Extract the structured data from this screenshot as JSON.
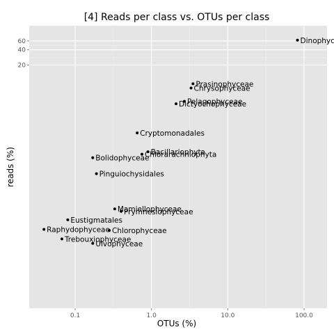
{
  "chart_data": {
    "type": "scatter",
    "title": "[4] Reads per class vs. OTUs per class",
    "xlabel": "OTUs (%)",
    "ylabel": "reads (%)",
    "x_scale": "log",
    "y_scale": "log",
    "xlim": [
      0.025,
      200
    ],
    "ylim": [
      0.0003,
      120
    ],
    "x_ticks": [
      {
        "value": 0.1,
        "label": "0.1"
      },
      {
        "value": 1,
        "label": "1.0"
      },
      {
        "value": 10,
        "label": "10.0"
      },
      {
        "value": 100,
        "label": "100.0"
      }
    ],
    "y_ticks": [
      {
        "value": 20,
        "label": "20"
      },
      {
        "value": 40,
        "label": "40"
      },
      {
        "value": 60,
        "label": "60"
      }
    ],
    "grid": true,
    "legend": "none",
    "points": [
      {
        "label": "Dinophyceae",
        "x": 82,
        "y": 62
      },
      {
        "label": "Prasinophyceae",
        "x": 3.5,
        "y": 8.5
      },
      {
        "label": "Chrysophyceae",
        "x": 3.3,
        "y": 7.0
      },
      {
        "label": "Pelagophyceae",
        "x": 2.7,
        "y": 3.8
      },
      {
        "label": "Dictyochophyceae",
        "x": 2.1,
        "y": 3.4
      },
      {
        "label": "Cryptomonadales",
        "x": 0.65,
        "y": 0.9
      },
      {
        "label": "Bacillariophyta",
        "x": 0.9,
        "y": 0.38
      },
      {
        "label": "Chlorarachniophyta",
        "x": 0.75,
        "y": 0.34
      },
      {
        "label": "Bolidophyceae",
        "x": 0.17,
        "y": 0.29
      },
      {
        "label": "Pinguiochysidales",
        "x": 0.19,
        "y": 0.14
      },
      {
        "label": "Mamiellophyceae",
        "x": 0.33,
        "y": 0.028
      },
      {
        "label": "Prymnesiophyceae",
        "x": 0.4,
        "y": 0.025
      },
      {
        "label": "Eustigmatales",
        "x": 0.08,
        "y": 0.017
      },
      {
        "label": "Raphydophyceae",
        "x": 0.039,
        "y": 0.011
      },
      {
        "label": "Chlorophyceae",
        "x": 0.28,
        "y": 0.0105
      },
      {
        "label": "Trebouxiophyceae",
        "x": 0.067,
        "y": 0.0071
      },
      {
        "label": "Ulvophyceae",
        "x": 0.17,
        "y": 0.0058
      }
    ]
  }
}
